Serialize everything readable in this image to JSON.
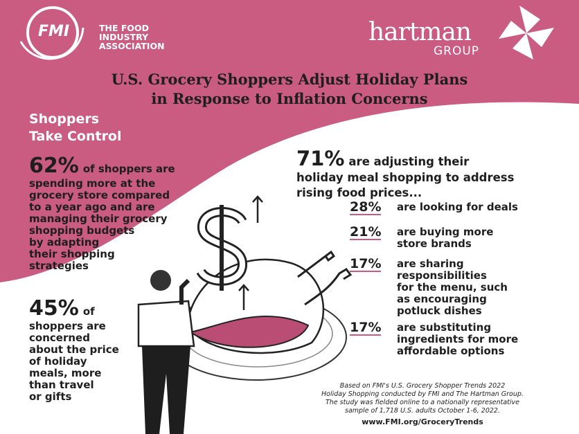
{
  "header": {
    "fmi_mark": "FMI",
    "fmi_name": [
      "THE FOOD",
      "INDUSTRY",
      "ASSOCIATION"
    ],
    "hartman_name": "hartman",
    "hartman_sub": "GROUP"
  },
  "title": [
    "U.S. Grocery Shoppers Adjust Holiday Plans",
    "in Response to Inflation Concerns"
  ],
  "section_heading": [
    "Shoppers",
    "Take Control"
  ],
  "left_stats": [
    {
      "figure": "62%",
      "lines": [
        "of shoppers are",
        "spending more at the",
        "grocery store compared",
        "to a year ago and are",
        "managing their grocery",
        "shopping budgets",
        "by adapting",
        "their shopping",
        "strategies"
      ]
    },
    {
      "figure": "45%",
      "lines": [
        "of",
        "shoppers are",
        "concerned",
        "about the price",
        "of holiday",
        "meals, more",
        "than travel",
        "or gifts"
      ]
    }
  ],
  "main_stat": {
    "figure": "71%",
    "lines": [
      "are adjusting their",
      "holiday meal shopping to address",
      "rising food prices..."
    ]
  },
  "sub_stats": [
    {
      "figure": "28%",
      "lines": [
        "are looking for deals"
      ]
    },
    {
      "figure": "21%",
      "lines": [
        "are buying more",
        "store brands"
      ]
    },
    {
      "figure": "17%",
      "lines": [
        "are sharing",
        "responsibilities",
        "for the menu, such",
        "as encouraging",
        "potluck dishes"
      ]
    },
    {
      "figure": "17%",
      "lines": [
        "are substituting",
        "ingredients for more",
        "affordable options"
      ]
    }
  ],
  "footnote": [
    "Based on FMI's U.S. Grocery Shopper Trends 2022",
    "Holiday Shopping conducted by FMI and The Hartman Group.",
    "The study was fielded online to a nationally representative",
    "sample of 1,718 U.S. adults October 1-6, 2022."
  ],
  "url": "www.FMI.org/GroceryTrends"
}
